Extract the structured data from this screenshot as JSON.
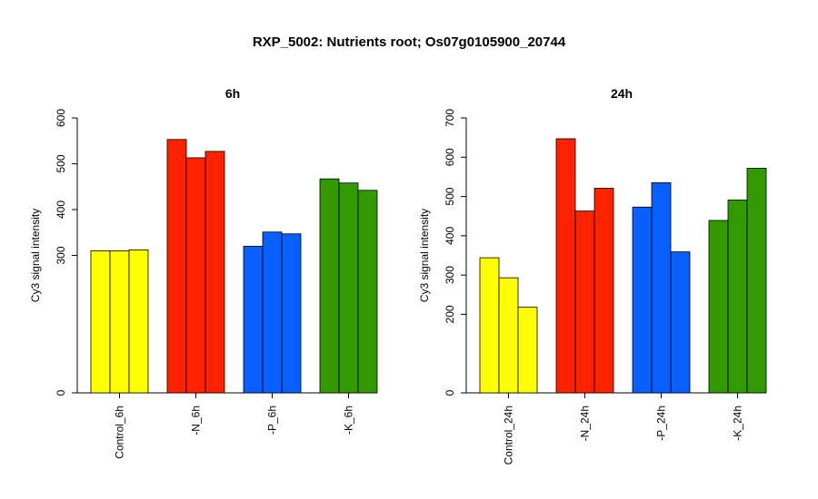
{
  "page_title": "RXP_5002: Nutrients root; Os07g0105900_20744",
  "colors": {
    "control": "#ffff00",
    "N": "#ff2200",
    "P": "#0a5fff",
    "K": "#339900"
  },
  "chart_data": [
    {
      "type": "bar",
      "title": "6h",
      "ylabel": "Cy3 signal intensity",
      "ylim": [
        0,
        600
      ],
      "yticks": [
        0,
        300,
        400,
        500,
        600
      ],
      "groups": [
        {
          "label": "Control_6h",
          "color_key": "control",
          "values": [
            310,
            310,
            312
          ]
        },
        {
          "label": "-N_6h",
          "color_key": "N",
          "values": [
            553,
            513,
            527
          ]
        },
        {
          "label": "-P_6h",
          "color_key": "P",
          "values": [
            320,
            351,
            347
          ]
        },
        {
          "label": "-K_6h",
          "color_key": "K",
          "values": [
            467,
            458,
            442
          ]
        }
      ]
    },
    {
      "type": "bar",
      "title": "24h",
      "ylabel": "Cy3 signal intensity",
      "ylim": [
        0,
        700
      ],
      "yticks": [
        0,
        200,
        300,
        400,
        500,
        600,
        700
      ],
      "groups": [
        {
          "label": "Control_24h",
          "color_key": "control",
          "values": [
            344,
            293,
            218
          ]
        },
        {
          "label": "-N_24h",
          "color_key": "N",
          "values": [
            647,
            463,
            521
          ]
        },
        {
          "label": "-P_24h",
          "color_key": "P",
          "values": [
            473,
            535,
            359
          ]
        },
        {
          "label": "-K_24h",
          "color_key": "K",
          "values": [
            439,
            491,
            572
          ]
        }
      ]
    }
  ]
}
